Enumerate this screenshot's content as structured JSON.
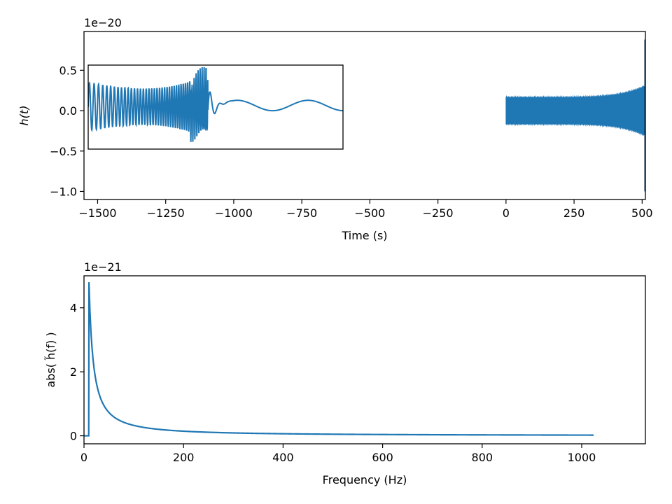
{
  "chart_data": [
    {
      "type": "line",
      "title": "",
      "xlabel": "Time (s)",
      "ylabel": "h(t)",
      "y_offset_label": "1e−20",
      "xlim": [
        -1550,
        512
      ],
      "ylim": [
        -1.1,
        0.98
      ],
      "x_ticks": [
        -1500,
        -1250,
        -1000,
        -750,
        -500,
        -250,
        0,
        250,
        500
      ],
      "x_tick_labels": [
        "−1500",
        "−1250",
        "−1000",
        "−750",
        "−500",
        "−250",
        "0",
        "250",
        "500"
      ],
      "y_ticks": [
        -1.0,
        -0.5,
        0.0,
        0.5
      ],
      "y_tick_labels": [
        "−1.0",
        "−0.5",
        "0.0",
        "0.5"
      ],
      "grid": false,
      "series_color": "#1f77b4",
      "waveform": {
        "start_time": 0,
        "end_time": 510,
        "amplitude_start": 0.16,
        "amplitude_end_region": 0.3,
        "merger_peak": 0.88,
        "merger_trough": -1.0
      },
      "inset": {
        "note": "zoom on merger",
        "y_range": [
          -0.5,
          0.55
        ]
      }
    },
    {
      "type": "line",
      "title": "",
      "xlabel": "Frequency (Hz)",
      "ylabel": "abs( h̃(f) )",
      "y_offset_label": "1e−21",
      "xlim": [
        0,
        1128
      ],
      "ylim": [
        -0.25,
        5.0
      ],
      "x_ticks": [
        0,
        200,
        400,
        600,
        800,
        1000
      ],
      "x_tick_labels": [
        "0",
        "200",
        "400",
        "600",
        "800",
        "1000"
      ],
      "y_ticks": [
        0,
        2,
        4
      ],
      "y_tick_labels": [
        "0",
        "2",
        "4"
      ],
      "grid": false,
      "series_color": "#1f77b4",
      "spectrum": {
        "f_low": 10,
        "f_high": 1024,
        "peak_value": 4.8,
        "tail_value": 0.01
      }
    }
  ]
}
